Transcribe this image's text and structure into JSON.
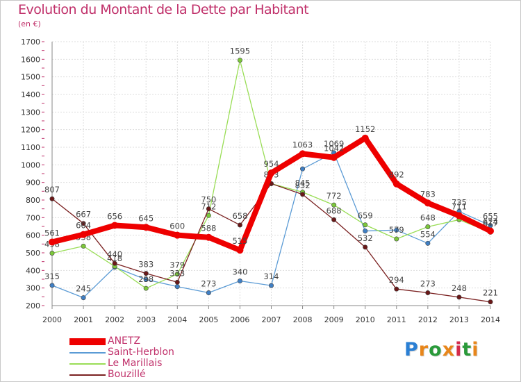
{
  "title": "Evolution du Montant de la Dette par Habitant",
  "subtitle": "(en €)",
  "logo_text": "Proxiti",
  "logo_colors": [
    "#2a7fd4",
    "#e8861a",
    "#2a9a3a",
    "#e8861a",
    "#d42a4a",
    "#2a9a3a",
    "#e8861a"
  ],
  "chart_data": {
    "type": "line",
    "title": "Evolution du Montant de la Dette par Habitant",
    "subtitle": "(en €)",
    "x": [
      "2000",
      "2001",
      "2002",
      "2003",
      "2004",
      "2005",
      "2006",
      "2007",
      "2008",
      "2009",
      "2010",
      "2011",
      "2012",
      "2013",
      "2014"
    ],
    "ylim": [
      200,
      1700
    ],
    "yticks": [
      "200",
      "300",
      "400",
      "500",
      "600",
      "700",
      "800",
      "900",
      "1000",
      "1100",
      "1200",
      "1300",
      "1400",
      "1500",
      "1600",
      "1700"
    ],
    "grid": true,
    "legend_position": "bottom-left",
    "series": [
      {
        "name": "Saint-Herblon",
        "color": "#5b9bd5",
        "point_color": "#3f7fc4",
        "values": [
          315,
          245,
          418,
          348,
          308,
          273,
          340,
          314,
          977,
          1069,
          624,
          629,
          554,
          735,
          655
        ],
        "labels": [
          "315",
          "245",
          "418",
          "",
          "",
          "273",
          "340",
          "314",
          "",
          "1069",
          "",
          "",
          "554",
          "735",
          "655"
        ]
      },
      {
        "name": "Le Marillais",
        "color": "#99dd55",
        "point_color": "#7cc83a",
        "values": [
          498,
          538,
          423,
          298,
          379,
          712,
          1595,
          893,
          845,
          772,
          659,
          579,
          648,
          688,
          617
        ],
        "labels": [
          "498",
          "538",
          "",
          "298",
          "379",
          "712",
          "1595",
          "",
          "845",
          "772",
          "659",
          "579",
          "648",
          "",
          "617"
        ]
      },
      {
        "name": "Bouzillé",
        "color": "#7a2020",
        "point_color": "#6a1818",
        "values": [
          807,
          667,
          440,
          383,
          333,
          750,
          658,
          893,
          832,
          688,
          532,
          294,
          273,
          248,
          221
        ],
        "labels": [
          "807",
          "667",
          "440",
          "383",
          "333",
          "750",
          "658",
          "893",
          "832",
          "688",
          "532",
          "294",
          "273",
          "248",
          "221"
        ]
      },
      {
        "name": "ANETZ",
        "color": "#ee0000",
        "point_color": "#ee0000",
        "values": [
          561,
          604,
          656,
          645,
          600,
          588,
          515,
          954,
          1063,
          1042,
          1152,
          892,
          783,
          711,
          624
        ],
        "labels": [
          "561",
          "604",
          "656",
          "645",
          "600",
          "588",
          "515",
          "954",
          "1063",
          "1042",
          "1152",
          "892",
          "783",
          "711",
          "624"
        ]
      }
    ]
  }
}
